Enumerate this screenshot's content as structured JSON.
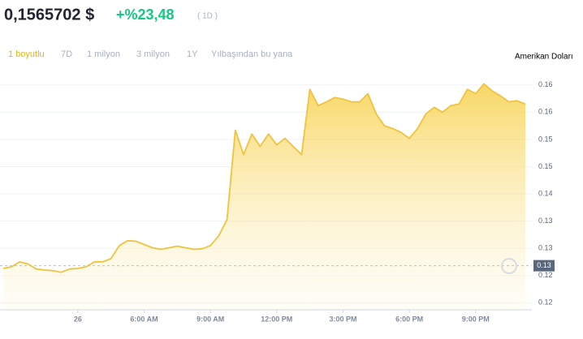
{
  "header": {
    "price": "0,1565702 $",
    "change": "+%23,48",
    "period": "( 1D )"
  },
  "tabs": [
    "1 boyutlu",
    "7D",
    "1 milyon",
    "3 milyon",
    "1Y",
    "Yılbaşından bu yana"
  ],
  "chart_data": {
    "type": "area",
    "y_axis_label": "Amerikan Doları",
    "color": "#f0c33c",
    "categories": [
      null,
      null,
      null,
      null,
      null,
      null,
      null,
      null,
      null,
      "26",
      null,
      null,
      null,
      null,
      null,
      null,
      null,
      "6:00 AM",
      null,
      null,
      null,
      null,
      null,
      null,
      null,
      "9:00 AM",
      null,
      null,
      null,
      null,
      null,
      null,
      null,
      "12:00 PM",
      null,
      null,
      null,
      null,
      null,
      null,
      null,
      "3:00 PM",
      null,
      null,
      null,
      null,
      null,
      null,
      null,
      "6:00 PM",
      null,
      null,
      null,
      null,
      null,
      null,
      null,
      "9:00 PM",
      null,
      null,
      null,
      null,
      null,
      null
    ],
    "values": [
      0.1263,
      0.1266,
      0.1275,
      0.1271,
      0.1262,
      0.126,
      0.1259,
      0.1256,
      0.1262,
      0.1263,
      0.1266,
      0.1275,
      0.1275,
      0.1281,
      0.1305,
      0.1314,
      0.1313,
      0.1307,
      0.1301,
      0.1298,
      0.1301,
      0.1304,
      0.1301,
      0.1298,
      0.1299,
      0.1305,
      0.1323,
      0.1353,
      0.1517,
      0.1472,
      0.151,
      0.1487,
      0.151,
      0.149,
      0.1502,
      0.1487,
      0.1472,
      0.1592,
      0.1562,
      0.1569,
      0.1577,
      0.1574,
      0.1569,
      0.1569,
      0.1584,
      0.1547,
      0.1525,
      0.152,
      0.1513,
      0.1502,
      0.152,
      0.1547,
      0.1559,
      0.155,
      0.1562,
      0.1565,
      0.1592,
      0.1584,
      0.1602,
      0.1589,
      0.158,
      0.1569,
      0.1571,
      0.1565
    ],
    "ylim": [
      0.1187,
      0.1625
    ],
    "yticks": [
      {
        "value": 0.12,
        "label": "0.12"
      },
      {
        "value": 0.125,
        "label": "0.12"
      },
      {
        "value": 0.13,
        "label": "0.13"
      },
      {
        "value": 0.135,
        "label": "0.13"
      },
      {
        "value": 0.14,
        "label": "0.14"
      },
      {
        "value": 0.145,
        "label": "0.15"
      },
      {
        "value": 0.15,
        "label": "0.15"
      },
      {
        "value": 0.155,
        "label": "0.16"
      },
      {
        "value": 0.16,
        "label": "0.16"
      }
    ],
    "reference_line": {
      "value": 0.1268,
      "label": "0.13"
    },
    "grid": true
  }
}
